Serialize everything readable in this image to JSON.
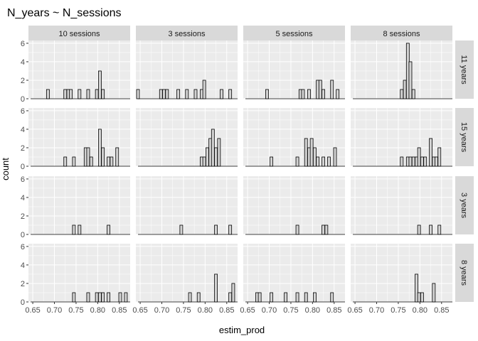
{
  "chart_data": {
    "type": "histogram-facet-grid",
    "title": "N_years ~ N_sessions",
    "xlabel": "estim_prod",
    "ylabel": "count",
    "col_strips": [
      "10 sessions",
      "3 sessions",
      "5 sessions",
      "8 sessions"
    ],
    "row_strips": [
      "11 years",
      "15 years",
      "3 years",
      "8 years"
    ],
    "xlim": [
      0.64,
      0.875
    ],
    "ylim": [
      0,
      6.3
    ],
    "x_ticks": [
      0.65,
      0.7,
      0.75,
      0.8,
      0.85
    ],
    "x_tick_labels": [
      "0.65",
      "0.70",
      "0.75",
      "0.80",
      "0.85"
    ],
    "y_ticks": [
      0,
      2,
      4,
      6
    ],
    "y_tick_labels": [
      "0",
      "2",
      "4",
      "6"
    ],
    "bin_width": 0.0066,
    "range_start": 0.645,
    "range_end": 0.875,
    "bar_fill": "#d3d3d3",
    "bar_stroke": "#000000",
    "panel_bg": "#ebebeb",
    "strip_bg": "#d9d9d9",
    "grid": true,
    "panels": [
      [
        {
          "bins": [
            [
              0.685,
              1
            ],
            [
              0.725,
              1
            ],
            [
              0.732,
              1
            ],
            [
              0.738,
              1
            ],
            [
              0.758,
              1
            ],
            [
              0.778,
              1
            ],
            [
              0.798,
              1
            ],
            [
              0.805,
              3
            ],
            [
              0.812,
              1
            ]
          ]
        },
        {
          "bins": [
            [
              0.645,
              1
            ],
            [
              0.698,
              1
            ],
            [
              0.705,
              1
            ],
            [
              0.712,
              1
            ],
            [
              0.738,
              1
            ],
            [
              0.758,
              1
            ],
            [
              0.778,
              1
            ],
            [
              0.792,
              1
            ],
            [
              0.798,
              2
            ],
            [
              0.838,
              1
            ],
            [
              0.858,
              1
            ]
          ]
        },
        {
          "bins": [
            [
              0.695,
              1
            ],
            [
              0.772,
              1
            ],
            [
              0.778,
              1
            ],
            [
              0.792,
              1
            ],
            [
              0.812,
              2
            ],
            [
              0.818,
              2
            ],
            [
              0.825,
              1
            ],
            [
              0.845,
              2
            ],
            [
              0.858,
              1
            ]
          ]
        },
        {
          "bins": [
            [
              0.758,
              1
            ],
            [
              0.765,
              2
            ],
            [
              0.772,
              6
            ],
            [
              0.778,
              4
            ],
            [
              0.785,
              1
            ]
          ]
        }
      ],
      [
        {
          "bins": [
            [
              0.725,
              1
            ],
            [
              0.745,
              1
            ],
            [
              0.772,
              2
            ],
            [
              0.778,
              2
            ],
            [
              0.785,
              1
            ],
            [
              0.805,
              4
            ],
            [
              0.812,
              2
            ],
            [
              0.825,
              1
            ],
            [
              0.832,
              1
            ],
            [
              0.845,
              2
            ]
          ]
        },
        {
          "bins": [
            [
              0.792,
              1
            ],
            [
              0.798,
              1
            ],
            [
              0.805,
              2
            ],
            [
              0.812,
              3
            ],
            [
              0.818,
              4
            ],
            [
              0.825,
              2
            ],
            [
              0.832,
              3
            ]
          ]
        },
        {
          "bins": [
            [
              0.705,
              1
            ],
            [
              0.765,
              1
            ],
            [
              0.785,
              3
            ],
            [
              0.792,
              2
            ],
            [
              0.798,
              3
            ],
            [
              0.805,
              2
            ],
            [
              0.812,
              1
            ],
            [
              0.825,
              1
            ],
            [
              0.838,
              1
            ],
            [
              0.852,
              2
            ]
          ]
        },
        {
          "bins": [
            [
              0.758,
              1
            ],
            [
              0.772,
              1
            ],
            [
              0.778,
              1
            ],
            [
              0.785,
              1
            ],
            [
              0.792,
              1
            ],
            [
              0.798,
              2
            ],
            [
              0.805,
              1
            ],
            [
              0.812,
              1
            ],
            [
              0.825,
              3
            ],
            [
              0.832,
              1
            ],
            [
              0.838,
              1
            ],
            [
              0.845,
              2
            ]
          ]
        }
      ],
      [
        {
          "bins": [
            [
              0.745,
              1
            ],
            [
              0.758,
              1
            ],
            [
              0.825,
              1
            ]
          ]
        },
        {
          "bins": [
            [
              0.745,
              1
            ],
            [
              0.825,
              1
            ],
            [
              0.858,
              1
            ]
          ]
        },
        {
          "bins": [
            [
              0.765,
              1
            ],
            [
              0.825,
              1
            ],
            [
              0.832,
              1
            ]
          ]
        },
        {
          "bins": [
            [
              0.798,
              1
            ],
            [
              0.825,
              1
            ],
            [
              0.845,
              1
            ]
          ]
        }
      ],
      [
        {
          "bins": [
            [
              0.745,
              1
            ],
            [
              0.778,
              1
            ],
            [
              0.798,
              1
            ],
            [
              0.805,
              1
            ],
            [
              0.812,
              1
            ],
            [
              0.825,
              1
            ],
            [
              0.852,
              1
            ],
            [
              0.865,
              1
            ]
          ]
        },
        {
          "bins": [
            [
              0.765,
              1
            ],
            [
              0.785,
              1
            ],
            [
              0.825,
              3
            ],
            [
              0.858,
              1
            ],
            [
              0.865,
              2
            ]
          ]
        },
        {
          "bins": [
            [
              0.672,
              1
            ],
            [
              0.678,
              1
            ],
            [
              0.705,
              1
            ],
            [
              0.738,
              1
            ],
            [
              0.765,
              1
            ],
            [
              0.785,
              1
            ],
            [
              0.805,
              1
            ],
            [
              0.845,
              1
            ]
          ]
        },
        {
          "bins": [
            [
              0.792,
              3
            ],
            [
              0.798,
              1
            ],
            [
              0.805,
              1
            ],
            [
              0.832,
              2
            ]
          ]
        }
      ]
    ]
  }
}
